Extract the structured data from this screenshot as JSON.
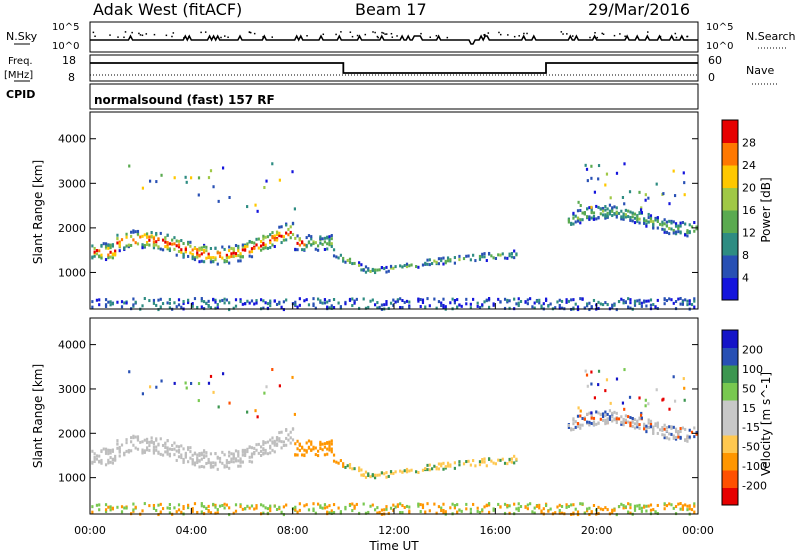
{
  "header": {
    "station": "Adak West (fitACF)",
    "beam": "Beam 17",
    "date": "29/Mar/2016"
  },
  "top_panels": {
    "nsky_label": "N.Sky",
    "nsearch_label": "N.Search",
    "freq_label_line1": "Freq.",
    "freq_label_line2": "[MHz]",
    "nave_label": "Nave",
    "cpid_label": "CPID",
    "nsky_ticks": [
      "10^5",
      "10^0"
    ],
    "nsearch_ticks": [
      "10^5",
      "10^0"
    ],
    "freq_ticks": [
      "18",
      "8"
    ],
    "nave_ticks": [
      "60",
      "0"
    ],
    "cpid_text": "normalsound (fast) 157 RF"
  },
  "colors": {
    "power_scale": [
      "#1414dc",
      "#2850b4",
      "#2e8c82",
      "#5aaa50",
      "#a0c846",
      "#ffc800",
      "#ff7800",
      "#e60000"
    ],
    "velocity_scale": [
      "#e60000",
      "#ff5000",
      "#ff9600",
      "#ffc850",
      "#c8c8c8",
      "#c8c8c8",
      "#78c850",
      "#3c9650",
      "#2850b4",
      "#1414c8"
    ],
    "ground_scatter": "#bebebe"
  },
  "chart_data": [
    {
      "type": "heatmap",
      "name": "power-panel",
      "xlabel": "Time UT",
      "ylabel": "Slant Range [km]",
      "colorbar_label": "Power [dB]",
      "colorbar_ticks": [
        "4",
        "8",
        "12",
        "16",
        "20",
        "24",
        "28"
      ],
      "x_range_hours": [
        0,
        24
      ],
      "ylim_km": [
        180,
        4600
      ],
      "y_ticks": [
        "1000",
        "2000",
        "3000",
        "4000"
      ],
      "x_ticks": [
        "00:00",
        "04:00",
        "08:00",
        "12:00",
        "16:00",
        "20:00",
        "00:00"
      ]
    },
    {
      "type": "heatmap",
      "name": "velocity-panel",
      "xlabel": "Time UT",
      "ylabel": "Slant Range [km]",
      "colorbar_label": "Velocity [m s^-1]",
      "colorbar_ticks": [
        "-200",
        "-100",
        "-50",
        "-15",
        "15",
        "50",
        "100",
        "200"
      ],
      "x_range_hours": [
        0,
        24
      ],
      "ylim_km": [
        180,
        4600
      ],
      "y_ticks": [
        "1000",
        "2000",
        "3000",
        "4000"
      ],
      "x_ticks": [
        "00:00",
        "04:00",
        "08:00",
        "12:00",
        "16:00",
        "20:00",
        "00:00"
      ]
    }
  ],
  "footer": {
    "xlabel": "Time UT"
  }
}
